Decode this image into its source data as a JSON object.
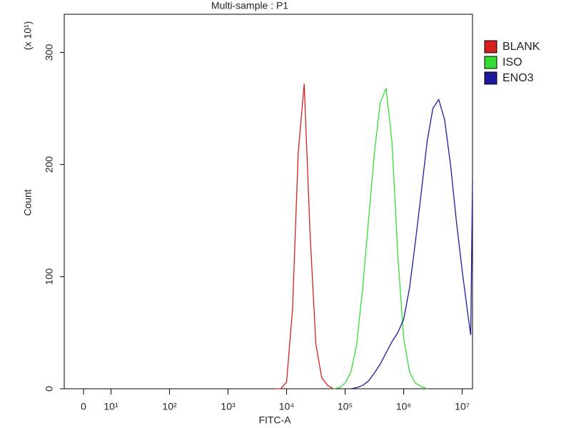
{
  "chart_data": {
    "type": "line",
    "title": "Multi-sample : P1",
    "x_label": "FITC-A",
    "y_label": "Count",
    "y_multiplier": "(x 10¹)",
    "x": [
      6300,
      7900,
      10000,
      12600,
      15800,
      20000,
      25100,
      31600,
      39800,
      50100,
      63100,
      79400,
      100000,
      126000,
      158000,
      200000,
      251000,
      316000,
      398000,
      501000,
      631000,
      794000,
      1000000,
      1260000,
      1580000,
      2000000,
      2510000,
      3160000,
      3980000,
      5010000,
      6310000,
      7940000,
      10000000,
      12600000,
      14000000,
      15000000
    ],
    "series": [
      {
        "name": "BLANK",
        "color": "#d42020",
        "values": [
          0,
          0,
          6,
          70,
          210,
          272,
          140,
          40,
          10,
          3,
          0,
          null,
          null,
          null,
          null,
          null,
          null,
          null,
          null,
          null,
          null,
          null,
          null,
          null,
          null,
          null,
          null,
          null,
          null,
          null,
          null,
          null,
          null,
          null,
          null,
          null
        ]
      },
      {
        "name": "ISO",
        "color": "#33dd33",
        "values": [
          null,
          null,
          null,
          null,
          null,
          null,
          null,
          null,
          null,
          null,
          0,
          1,
          5,
          15,
          40,
          90,
          150,
          210,
          255,
          268,
          220,
          120,
          45,
          15,
          5,
          2,
          0,
          null,
          null,
          null,
          null,
          null,
          null,
          null,
          null,
          null
        ]
      },
      {
        "name": "ENO3",
        "color": "#1c1c9c",
        "values": [
          null,
          null,
          null,
          null,
          null,
          null,
          null,
          null,
          null,
          null,
          null,
          null,
          null,
          0,
          1,
          3,
          7,
          14,
          22,
          32,
          42,
          50,
          62,
          90,
          130,
          175,
          220,
          250,
          258,
          240,
          200,
          150,
          105,
          65,
          48,
          186
        ]
      }
    ],
    "xlim": [
      -7,
      15000000
    ],
    "xticks": [
      0,
      {
        "value": 10,
        "label": "10¹"
      },
      {
        "value": 100,
        "label": "10²"
      },
      {
        "value": 1000,
        "label": "10³"
      },
      {
        "value": 10000,
        "label": "10⁴"
      },
      {
        "value": 100000,
        "label": "10⁵"
      },
      {
        "value": 1000000,
        "label": "10⁶"
      },
      {
        "value": 10000000,
        "label": "10⁷"
      }
    ],
    "ylim": [
      0,
      334
    ],
    "yticks": [
      0,
      100,
      200,
      300
    ],
    "x_scale": "biexponential",
    "legend": "right"
  }
}
